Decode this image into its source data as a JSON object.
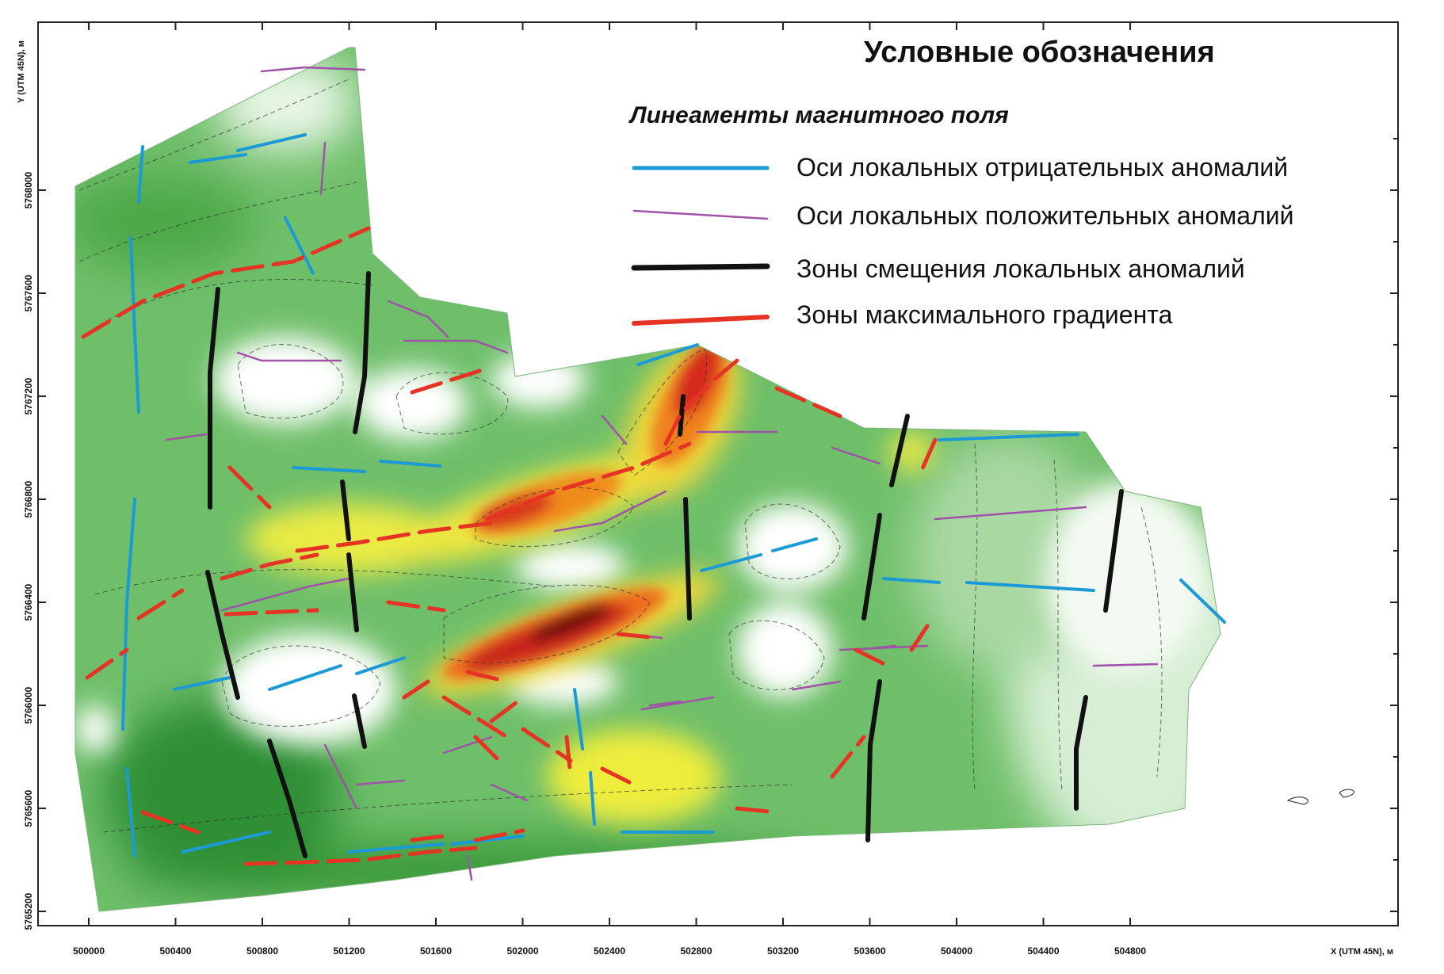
{
  "legend": {
    "title": "Условные обозначения",
    "subtitle": "Линеаменты магнитного поля",
    "items": [
      {
        "label": "Оси локальных отрицательных аномалий",
        "color": "#1b9ad6",
        "style": "thick"
      },
      {
        "label": "Оси локальных положительных аномалий",
        "color": "#a052a8",
        "style": "thin"
      },
      {
        "label": "Зоны смещения локальных аномалий",
        "color": "#111111",
        "style": "thick-black"
      },
      {
        "label": "Зоны максимального градиента",
        "color": "#e53424",
        "style": "thick"
      }
    ]
  },
  "axes": {
    "x_title": "X (UTM 45N), м",
    "y_title": "Y (UTM 45N), м",
    "x_ticks": [
      "500000",
      "500400",
      "500800",
      "501200",
      "501600",
      "502000",
      "502400",
      "502800",
      "503200",
      "503600",
      "504000",
      "504400",
      "504800"
    ],
    "y_ticks": [
      "5765200",
      "5765600",
      "5766000",
      "5766400",
      "5766800",
      "5767200",
      "5767600",
      "5768000"
    ]
  },
  "colors": {
    "field_low": "#ffffff",
    "field_green": "#2f9a3a",
    "field_yellow": "#f0ec3a",
    "field_orange": "#f08a1e",
    "field_red": "#d2281c",
    "field_dark": "#5a0a0a"
  }
}
